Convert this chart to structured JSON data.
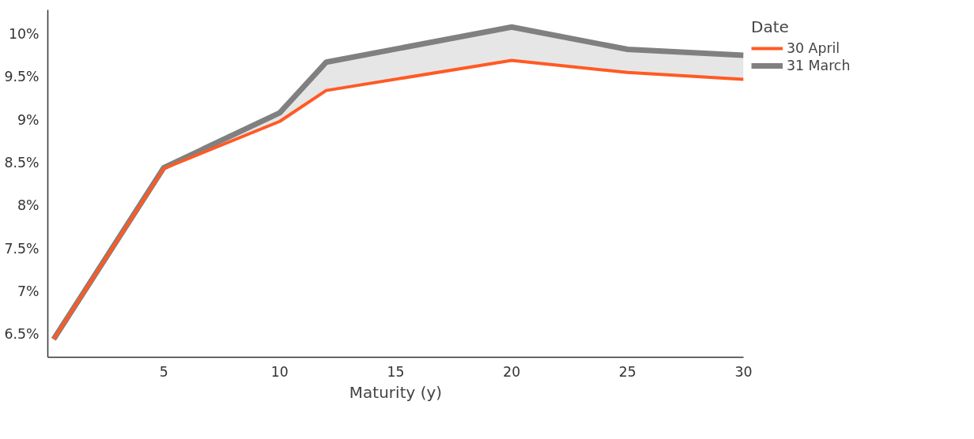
{
  "chart_data": {
    "type": "line",
    "xlabel": "Maturity (y)",
    "legend_title": "Date",
    "legend": "top right",
    "grid": false,
    "marker": "none",
    "line_style": "solid",
    "xlim": [
      0,
      30
    ],
    "xticks": [
      5,
      10,
      15,
      20,
      25,
      30
    ],
    "ylim": [
      6.23,
      10.28
    ],
    "yticks": [
      {
        "value": 6.5,
        "label": "6.5%"
      },
      {
        "value": 7,
        "label": "7%"
      },
      {
        "value": 7.5,
        "label": "7.5%"
      },
      {
        "value": 8,
        "label": "8%"
      },
      {
        "value": 8.5,
        "label": "8.5%"
      },
      {
        "value": 9,
        "label": "9%"
      },
      {
        "value": 9.5,
        "label": "9.5%"
      },
      {
        "value": 10,
        "label": "10%"
      }
    ],
    "x": [
      0.25,
      5,
      10,
      12,
      20,
      25,
      30
    ],
    "series": [
      {
        "name": "30 April",
        "color": "#ff5a24",
        "values": [
          6.44,
          8.43,
          8.98,
          9.34,
          9.69,
          9.55,
          9.47
        ]
      },
      {
        "name": "31 March",
        "color": "#808080",
        "values": [
          6.44,
          8.44,
          9.08,
          9.67,
          10.08,
          9.82,
          9.75
        ],
        "lower": [
          6.44,
          8.43,
          8.98,
          9.34,
          9.69,
          9.55,
          9.47
        ],
        "upper": [
          6.44,
          8.44,
          9.08,
          9.67,
          10.08,
          9.82,
          9.75
        ]
      }
    ]
  }
}
